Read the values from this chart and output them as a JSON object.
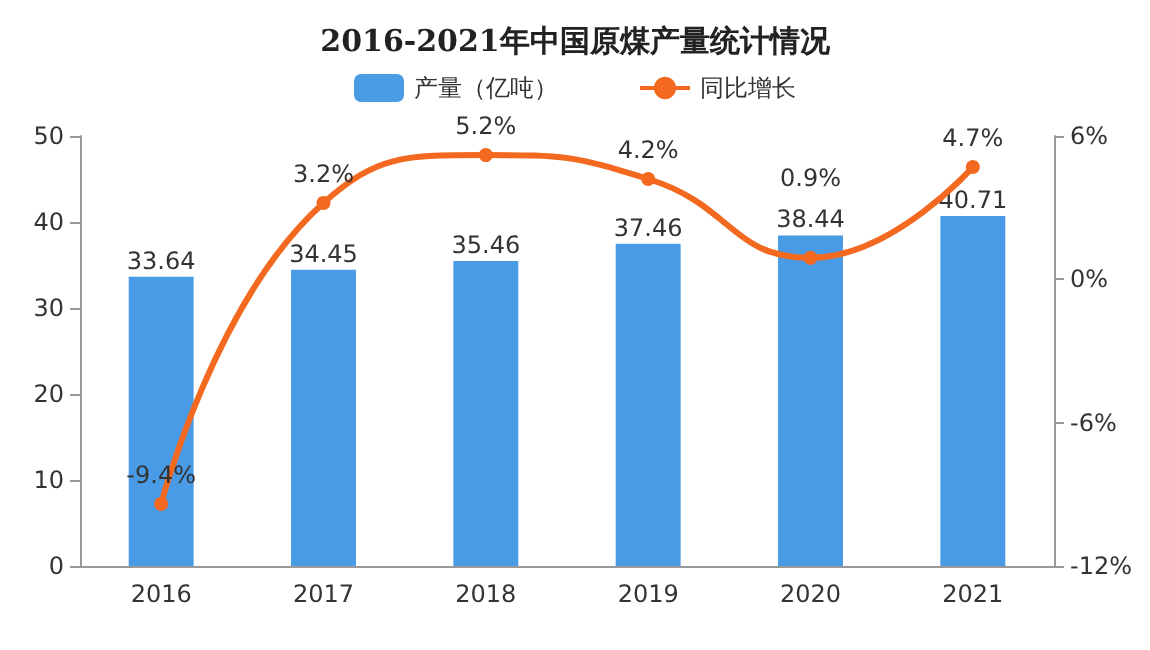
{
  "chart_data": {
    "type": "bar",
    "title": "2016-2021年中国原煤产量统计情况",
    "categories": [
      "2016",
      "2017",
      "2018",
      "2019",
      "2020",
      "2021"
    ],
    "series": [
      {
        "name": "产量（亿吨）",
        "color": "#4a9be6",
        "values": [
          33.64,
          34.45,
          35.46,
          37.46,
          38.44,
          40.71
        ],
        "value_labels": [
          "33.64",
          "34.45",
          "35.46",
          "37.46",
          "38.44",
          "40.71"
        ]
      },
      {
        "name": "同比增长",
        "type": "line",
        "axis": "y2",
        "color": "#f2691f",
        "values": [
          -9.4,
          3.2,
          5.2,
          4.2,
          0.9,
          4.7
        ],
        "value_labels": [
          "-9.4%",
          "3.2%",
          "5.2%",
          "4.2%",
          "0.9%",
          "4.7%"
        ]
      }
    ],
    "ylim": [
      0,
      50
    ],
    "yticks": [
      0,
      10,
      20,
      30,
      40,
      50
    ],
    "y2lim": [
      -12,
      6
    ],
    "y2ticks": [
      {
        "value": -12,
        "label": "-12%"
      },
      {
        "value": -6,
        "label": "-6%"
      },
      {
        "value": 0,
        "label": "0%"
      },
      {
        "value": 6,
        "label": "6%"
      }
    ],
    "grid": false,
    "legend": "top",
    "marker": "circle",
    "line_style": "solid"
  }
}
